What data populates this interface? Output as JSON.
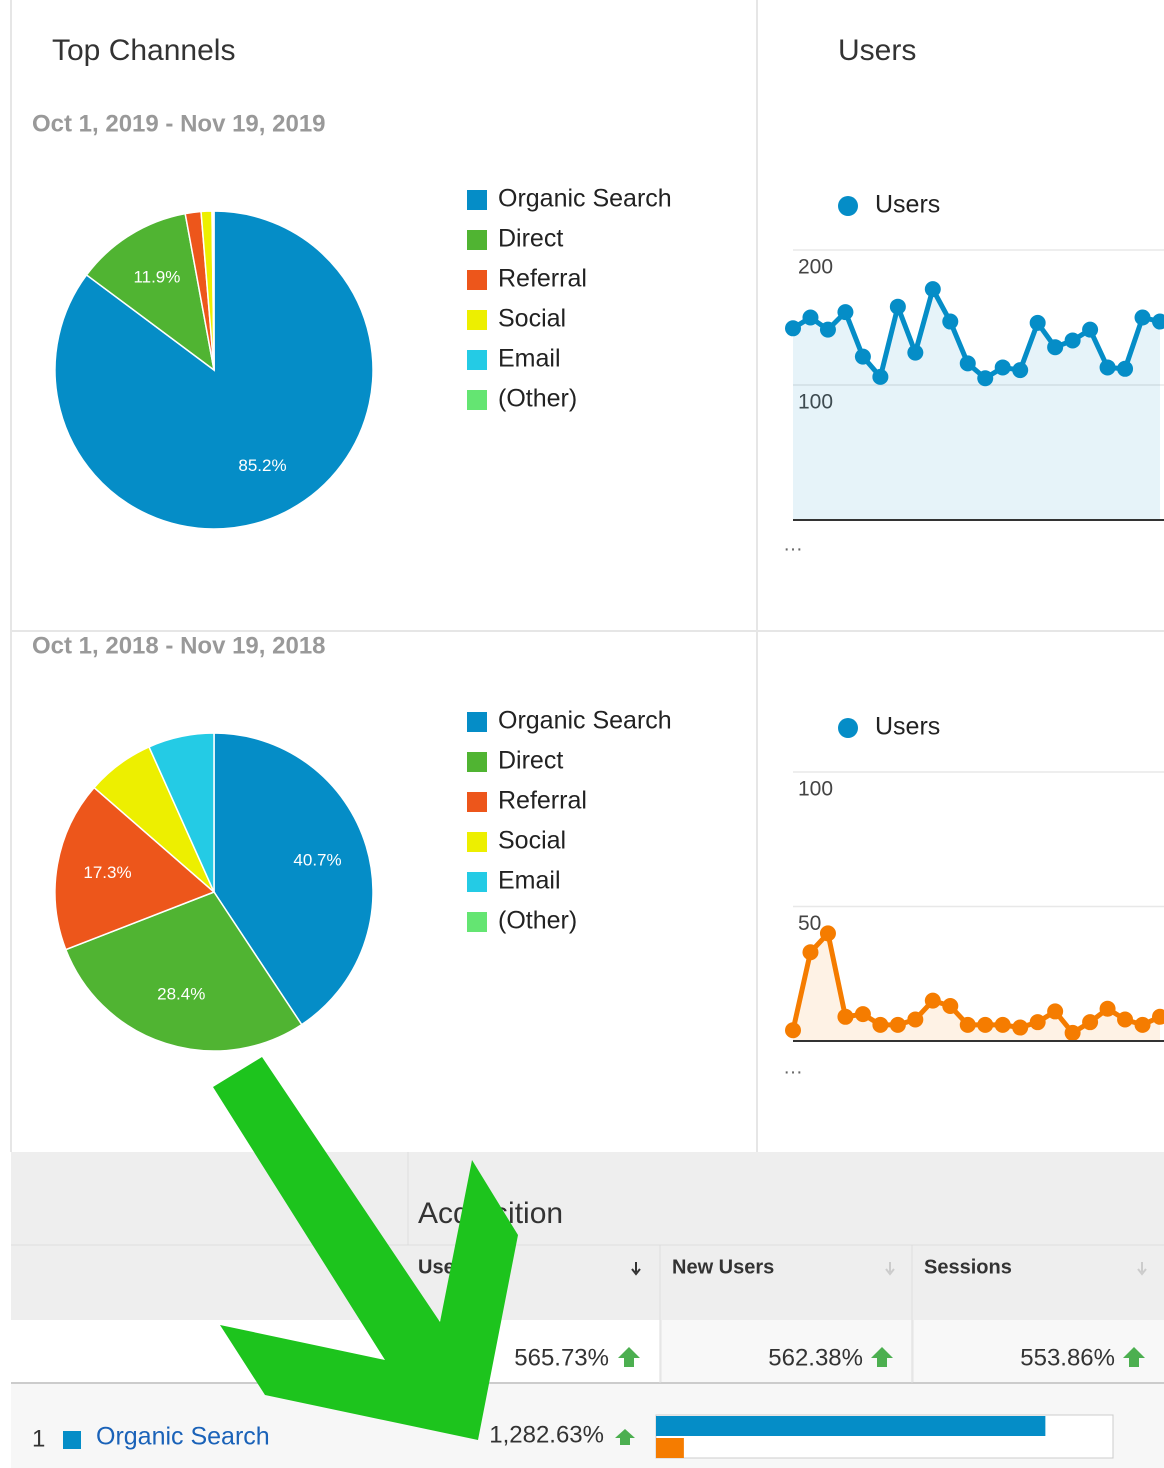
{
  "page": {
    "title": "Top Channels",
    "users_title": "Users"
  },
  "chart_data": [
    {
      "type": "pie",
      "subtitle": "Oct 1, 2019 - Nov 19, 2019",
      "categories": [
        "Organic Search",
        "Direct",
        "Referral",
        "Social",
        "Email",
        "(Other)"
      ],
      "colors": [
        "#058dc7",
        "#50b432",
        "#ed561b",
        "#edef00",
        "#24cbe5",
        "#64e572"
      ],
      "values": [
        85.2,
        11.9,
        1.6,
        1.1,
        0.1,
        0.1
      ],
      "value_labels": [
        "85.2%",
        "11.9%",
        null,
        null,
        null,
        null
      ]
    },
    {
      "type": "line",
      "series": [
        {
          "name": "Users",
          "color": "#058dc7",
          "values": [
            142,
            150,
            141,
            154,
            121,
            106,
            158,
            124,
            171,
            147,
            116,
            105,
            113,
            111,
            146,
            128,
            133,
            141,
            113,
            112,
            150,
            147
          ]
        }
      ],
      "ylim": [
        0,
        200
      ],
      "yticks": [
        100,
        200
      ],
      "annotation": "…"
    },
    {
      "type": "pie",
      "subtitle": "Oct 1, 2018 - Nov 19, 2018",
      "categories": [
        "Organic Search",
        "Direct",
        "Referral",
        "Social",
        "Email",
        "(Other)"
      ],
      "colors": [
        "#058dc7",
        "#50b432",
        "#ed561b",
        "#edef00",
        "#24cbe5",
        "#64e572"
      ],
      "values": [
        40.7,
        28.4,
        17.3,
        6.9,
        6.7,
        0
      ],
      "value_labels": [
        "40.7%",
        "28.4%",
        "17.3%",
        null,
        null,
        null
      ]
    },
    {
      "type": "line",
      "series": [
        {
          "name": "Users",
          "color": "#f57c00",
          "values": [
            4,
            33,
            40,
            9,
            10,
            6,
            6,
            8,
            15,
            13,
            6,
            6,
            6,
            5,
            7,
            11,
            3,
            7,
            12,
            8,
            6,
            9
          ]
        }
      ],
      "ylim": [
        0,
        100
      ],
      "yticks": [
        50,
        100
      ],
      "annotation": "…"
    }
  ],
  "table": {
    "group_title": "Acquisition",
    "columns": [
      "Users",
      "New Users",
      "Sessions"
    ],
    "totals": [
      "565.73%",
      "562.38%",
      "553.86%"
    ],
    "rows": [
      {
        "rank": 1,
        "channel": "Organic Search",
        "users": "1,282.63%",
        "bars": [
          85.2,
          6.1
        ]
      }
    ],
    "bar_lim": [
      0,
      100
    ],
    "bar_colors": [
      "#058dc7",
      "#f57c00"
    ]
  }
}
